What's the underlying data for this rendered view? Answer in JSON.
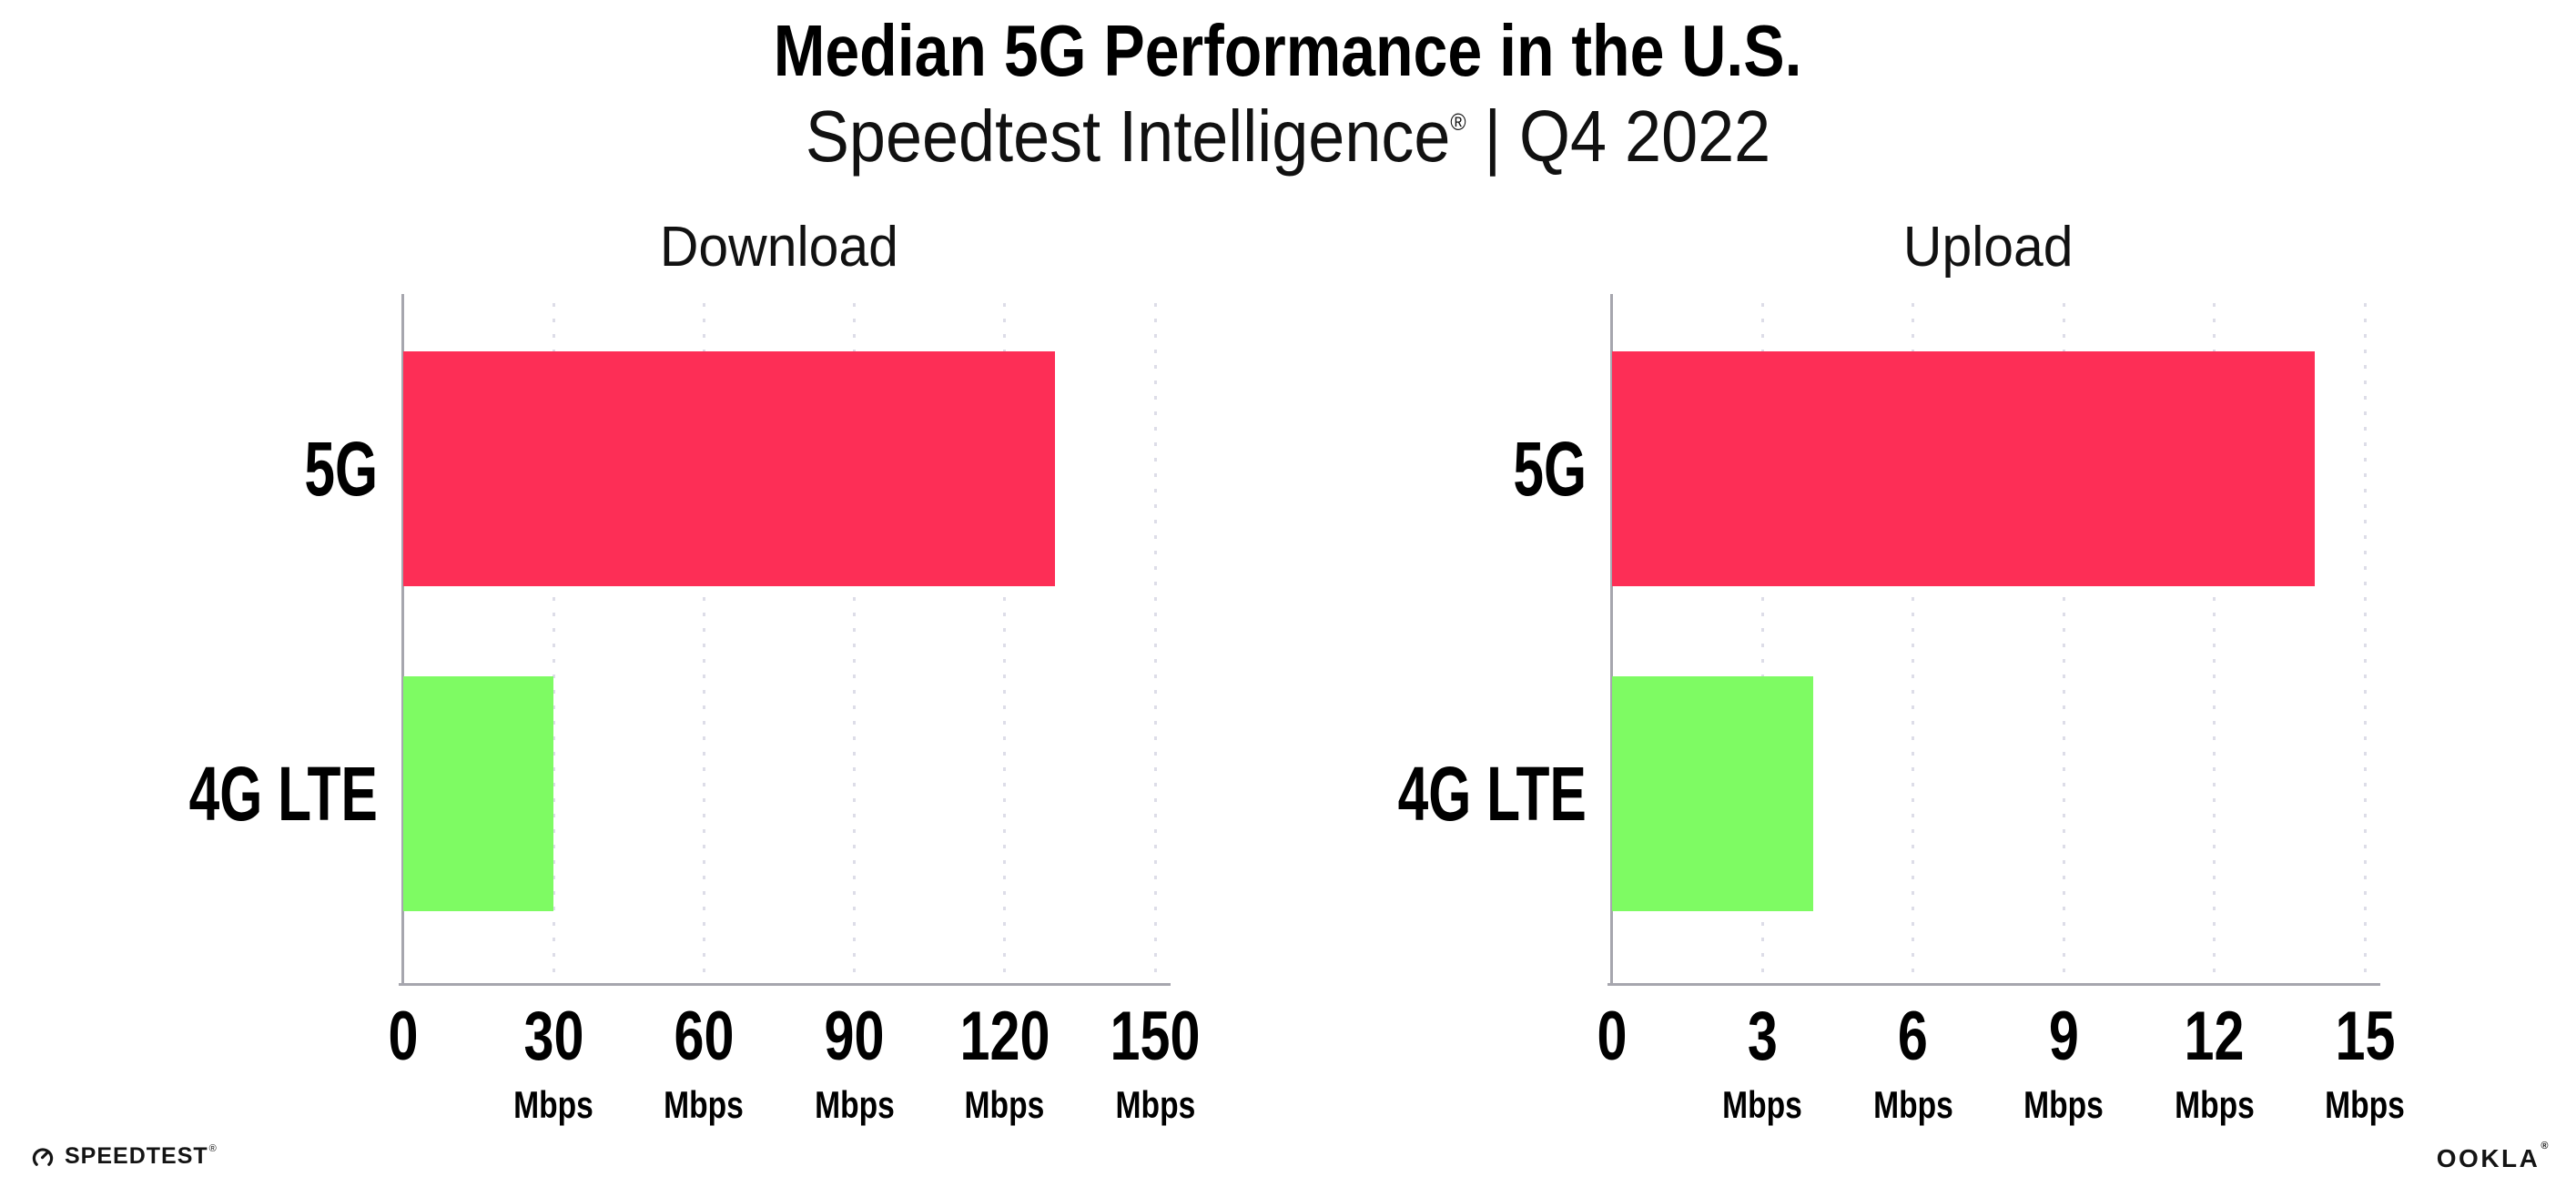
{
  "header": {
    "title": "Median 5G Performance in the U.S.",
    "subtitle": {
      "brand": "Speedtest Intelligence",
      "registered": "®",
      "separator": "|",
      "period": "Q4 2022"
    }
  },
  "chart_data": [
    {
      "type": "bar",
      "orientation": "horizontal",
      "title": "Download",
      "categories": [
        "5G",
        "4G LTE"
      ],
      "values": [
        130,
        30
      ],
      "value_unit": "Mbps",
      "xlim": [
        0,
        150
      ],
      "xticks": [
        0,
        30,
        60,
        90,
        120,
        150
      ],
      "xtick_unit": "Mbps",
      "bar_colors": [
        "#FD2E56",
        "#7EFB63"
      ],
      "grid": "vertical-dotted",
      "legend": "none"
    },
    {
      "type": "bar",
      "orientation": "horizontal",
      "title": "Upload",
      "categories": [
        "5G",
        "4G LTE"
      ],
      "values": [
        14,
        4
      ],
      "value_unit": "Mbps",
      "xlim": [
        0,
        15
      ],
      "xticks": [
        0,
        3,
        6,
        9,
        12,
        15
      ],
      "xtick_unit": "Mbps",
      "bar_colors": [
        "#FD2E56",
        "#7EFB63"
      ],
      "grid": "vertical-dotted",
      "legend": "none"
    }
  ],
  "footer": {
    "speedtest": {
      "label": "SPEEDTEST",
      "registered": "®"
    },
    "ookla": {
      "label": "OOKLA",
      "registered": "®"
    }
  },
  "colors": {
    "background": "#FFFFFF",
    "bar_5g": "#FD2E56",
    "bar_4g_lte": "#7EFB63",
    "axis_line": "#A6A6AE",
    "gridline": "#DDDDE8",
    "text": "#000000"
  }
}
